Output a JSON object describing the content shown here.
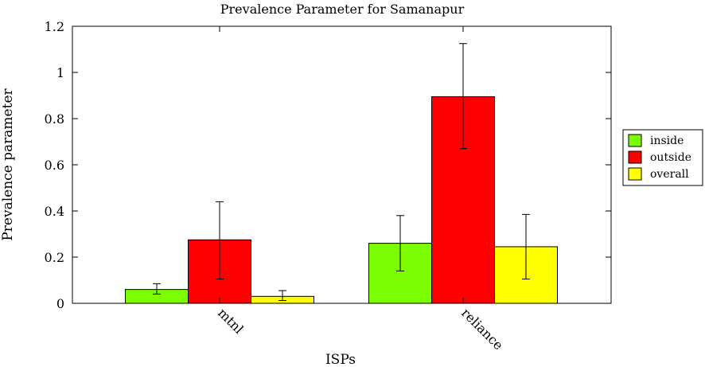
{
  "chart_data": {
    "type": "bar",
    "title": "Prevalence Parameter for Samanapur",
    "xlabel": "ISPs",
    "ylabel": "Prevalence parameter",
    "categories": [
      "mtnl",
      "reliance"
    ],
    "ylim": [
      0,
      1.2
    ],
    "yticks": [
      "0",
      "0.2",
      "0.4",
      "0.6",
      "0.8",
      "1",
      "1.2"
    ],
    "ytick_values": [
      0,
      0.2,
      0.4,
      0.6,
      0.8,
      1.0,
      1.2
    ],
    "grid": false,
    "legend_position": "right",
    "series": [
      {
        "name": "inside",
        "color": "#7cfc00",
        "values": [
          0.06,
          0.26
        ],
        "error_low": [
          0.04,
          0.14
        ],
        "error_high": [
          0.085,
          0.38
        ]
      },
      {
        "name": "outside",
        "color": "#ff0000",
        "values": [
          0.275,
          0.895
        ],
        "error_low": [
          0.105,
          0.67
        ],
        "error_high": [
          0.44,
          1.125
        ]
      },
      {
        "name": "overall",
        "color": "#ffff00",
        "values": [
          0.03,
          0.245
        ],
        "error_low": [
          0.012,
          0.105
        ],
        "error_high": [
          0.055,
          0.385
        ]
      }
    ]
  }
}
